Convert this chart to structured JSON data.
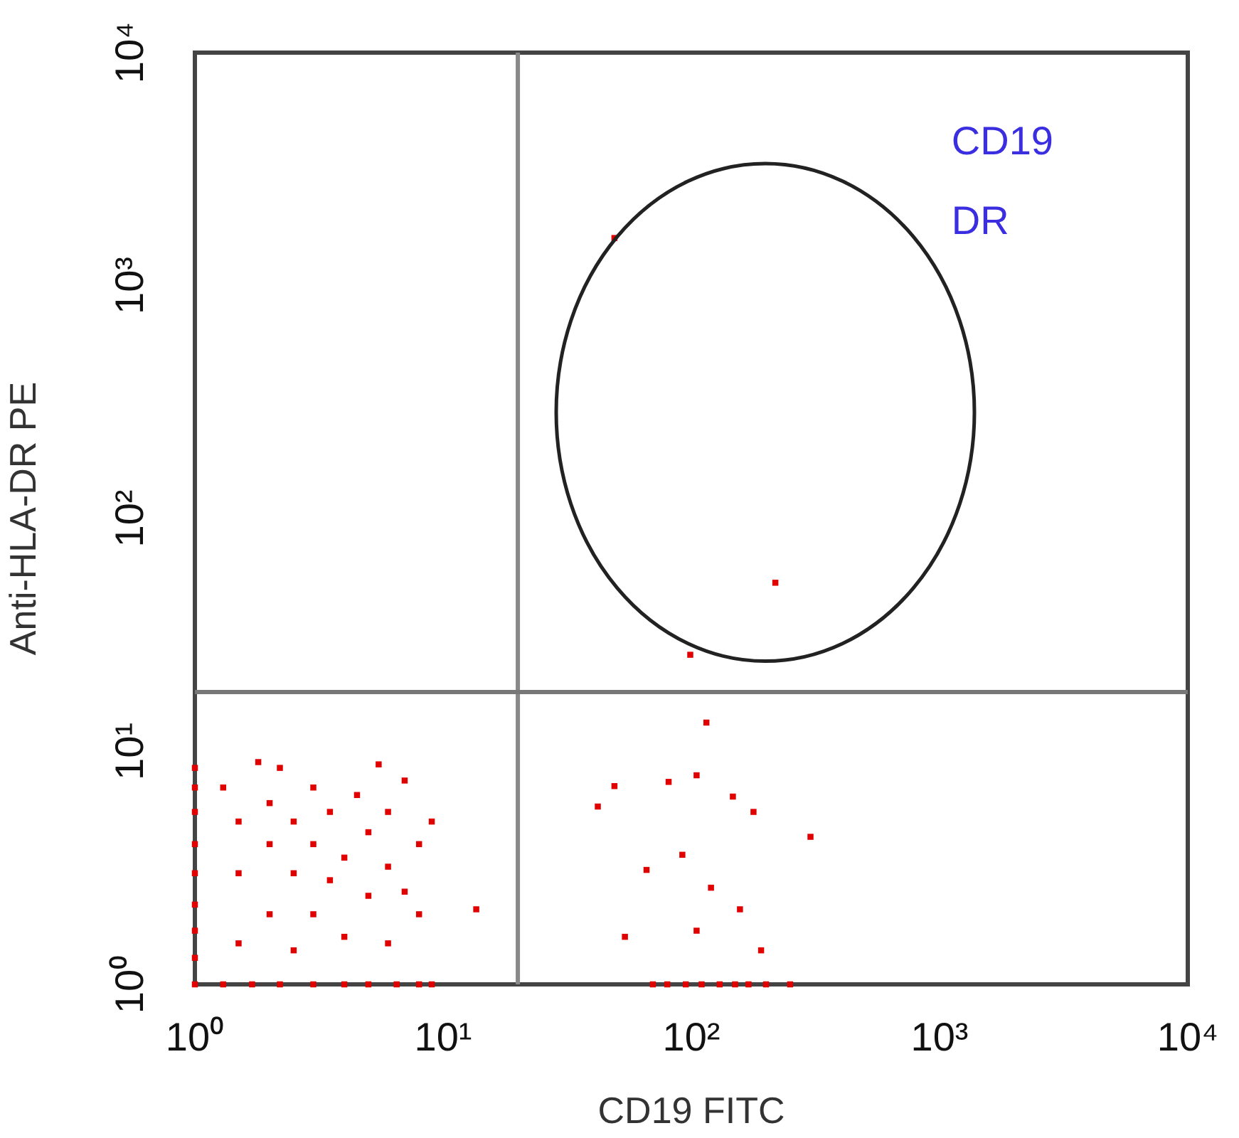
{
  "chart_data": {
    "type": "scatter",
    "xlabel": "CD19 FITC",
    "ylabel": "Anti-HLA-DR PE",
    "log": "xy",
    "xlim": [
      1,
      10000
    ],
    "ylim": [
      1,
      10000
    ],
    "xticks": [
      {
        "value": 1,
        "label": "10⁰"
      },
      {
        "value": 10,
        "label": "10¹"
      },
      {
        "value": 100,
        "label": "10²"
      },
      {
        "value": 1000,
        "label": "10³"
      },
      {
        "value": 10000,
        "label": "10⁴"
      }
    ],
    "yticks": [
      {
        "value": 1,
        "label": "10⁰"
      },
      {
        "value": 10,
        "label": "10¹"
      },
      {
        "value": 100,
        "label": "10²"
      },
      {
        "value": 1000,
        "label": "10³"
      },
      {
        "value": 10000,
        "label": "10⁴"
      }
    ],
    "marker": "square",
    "grid": false,
    "legend": false,
    "annotations": [
      "CD19",
      "DR"
    ],
    "ref_lines": [
      {
        "axis": "x",
        "value": 20,
        "label": null,
        "color": "#888888"
      },
      {
        "axis": "y",
        "value": 18,
        "label": null,
        "color": "#777777"
      }
    ],
    "series": [
      {
        "color": "#e00000",
        "x": [
          1,
          1,
          1,
          1,
          1,
          1,
          1,
          1,
          1,
          1.3,
          1.7,
          2.2,
          3,
          4,
          5,
          6.5,
          8,
          9,
          1.5,
          1.5,
          1.5,
          1.3,
          2,
          2,
          2,
          2.5,
          2.5,
          2.5,
          3,
          3,
          3,
          3.5,
          3.5,
          4,
          4,
          4.5,
          5,
          5,
          6,
          6,
          6,
          7,
          7,
          8,
          8,
          9,
          2.2,
          5.5,
          1.8,
          13.6,
          42,
          49,
          81,
          105,
          115,
          147,
          178,
          302,
          92,
          66,
          120,
          157,
          54,
          105,
          191,
          70,
          80,
          95,
          110,
          130,
          150,
          170,
          200,
          250,
          218,
          99,
          49
        ],
        "values": [
          1,
          1.3,
          1.7,
          2.2,
          3,
          4,
          5.5,
          7,
          8.5,
          1,
          1,
          1,
          1,
          1,
          1,
          1,
          1,
          1,
          1.5,
          3,
          5,
          7,
          2,
          4,
          6,
          1.4,
          3,
          5,
          2,
          4,
          7,
          2.8,
          5.5,
          1.6,
          3.5,
          6.5,
          2.4,
          4.5,
          1.5,
          3.2,
          5.5,
          2.5,
          7.5,
          4,
          2,
          5,
          8.5,
          8.8,
          9,
          2.1,
          5.8,
          7.1,
          7.4,
          7.9,
          13.3,
          6.4,
          5.5,
          4.3,
          3.6,
          3.1,
          2.6,
          2.1,
          1.6,
          1.7,
          1.4,
          1,
          1,
          1,
          1,
          1,
          1,
          1,
          1,
          1,
          53,
          26,
          1600
        ]
      }
    ]
  }
}
